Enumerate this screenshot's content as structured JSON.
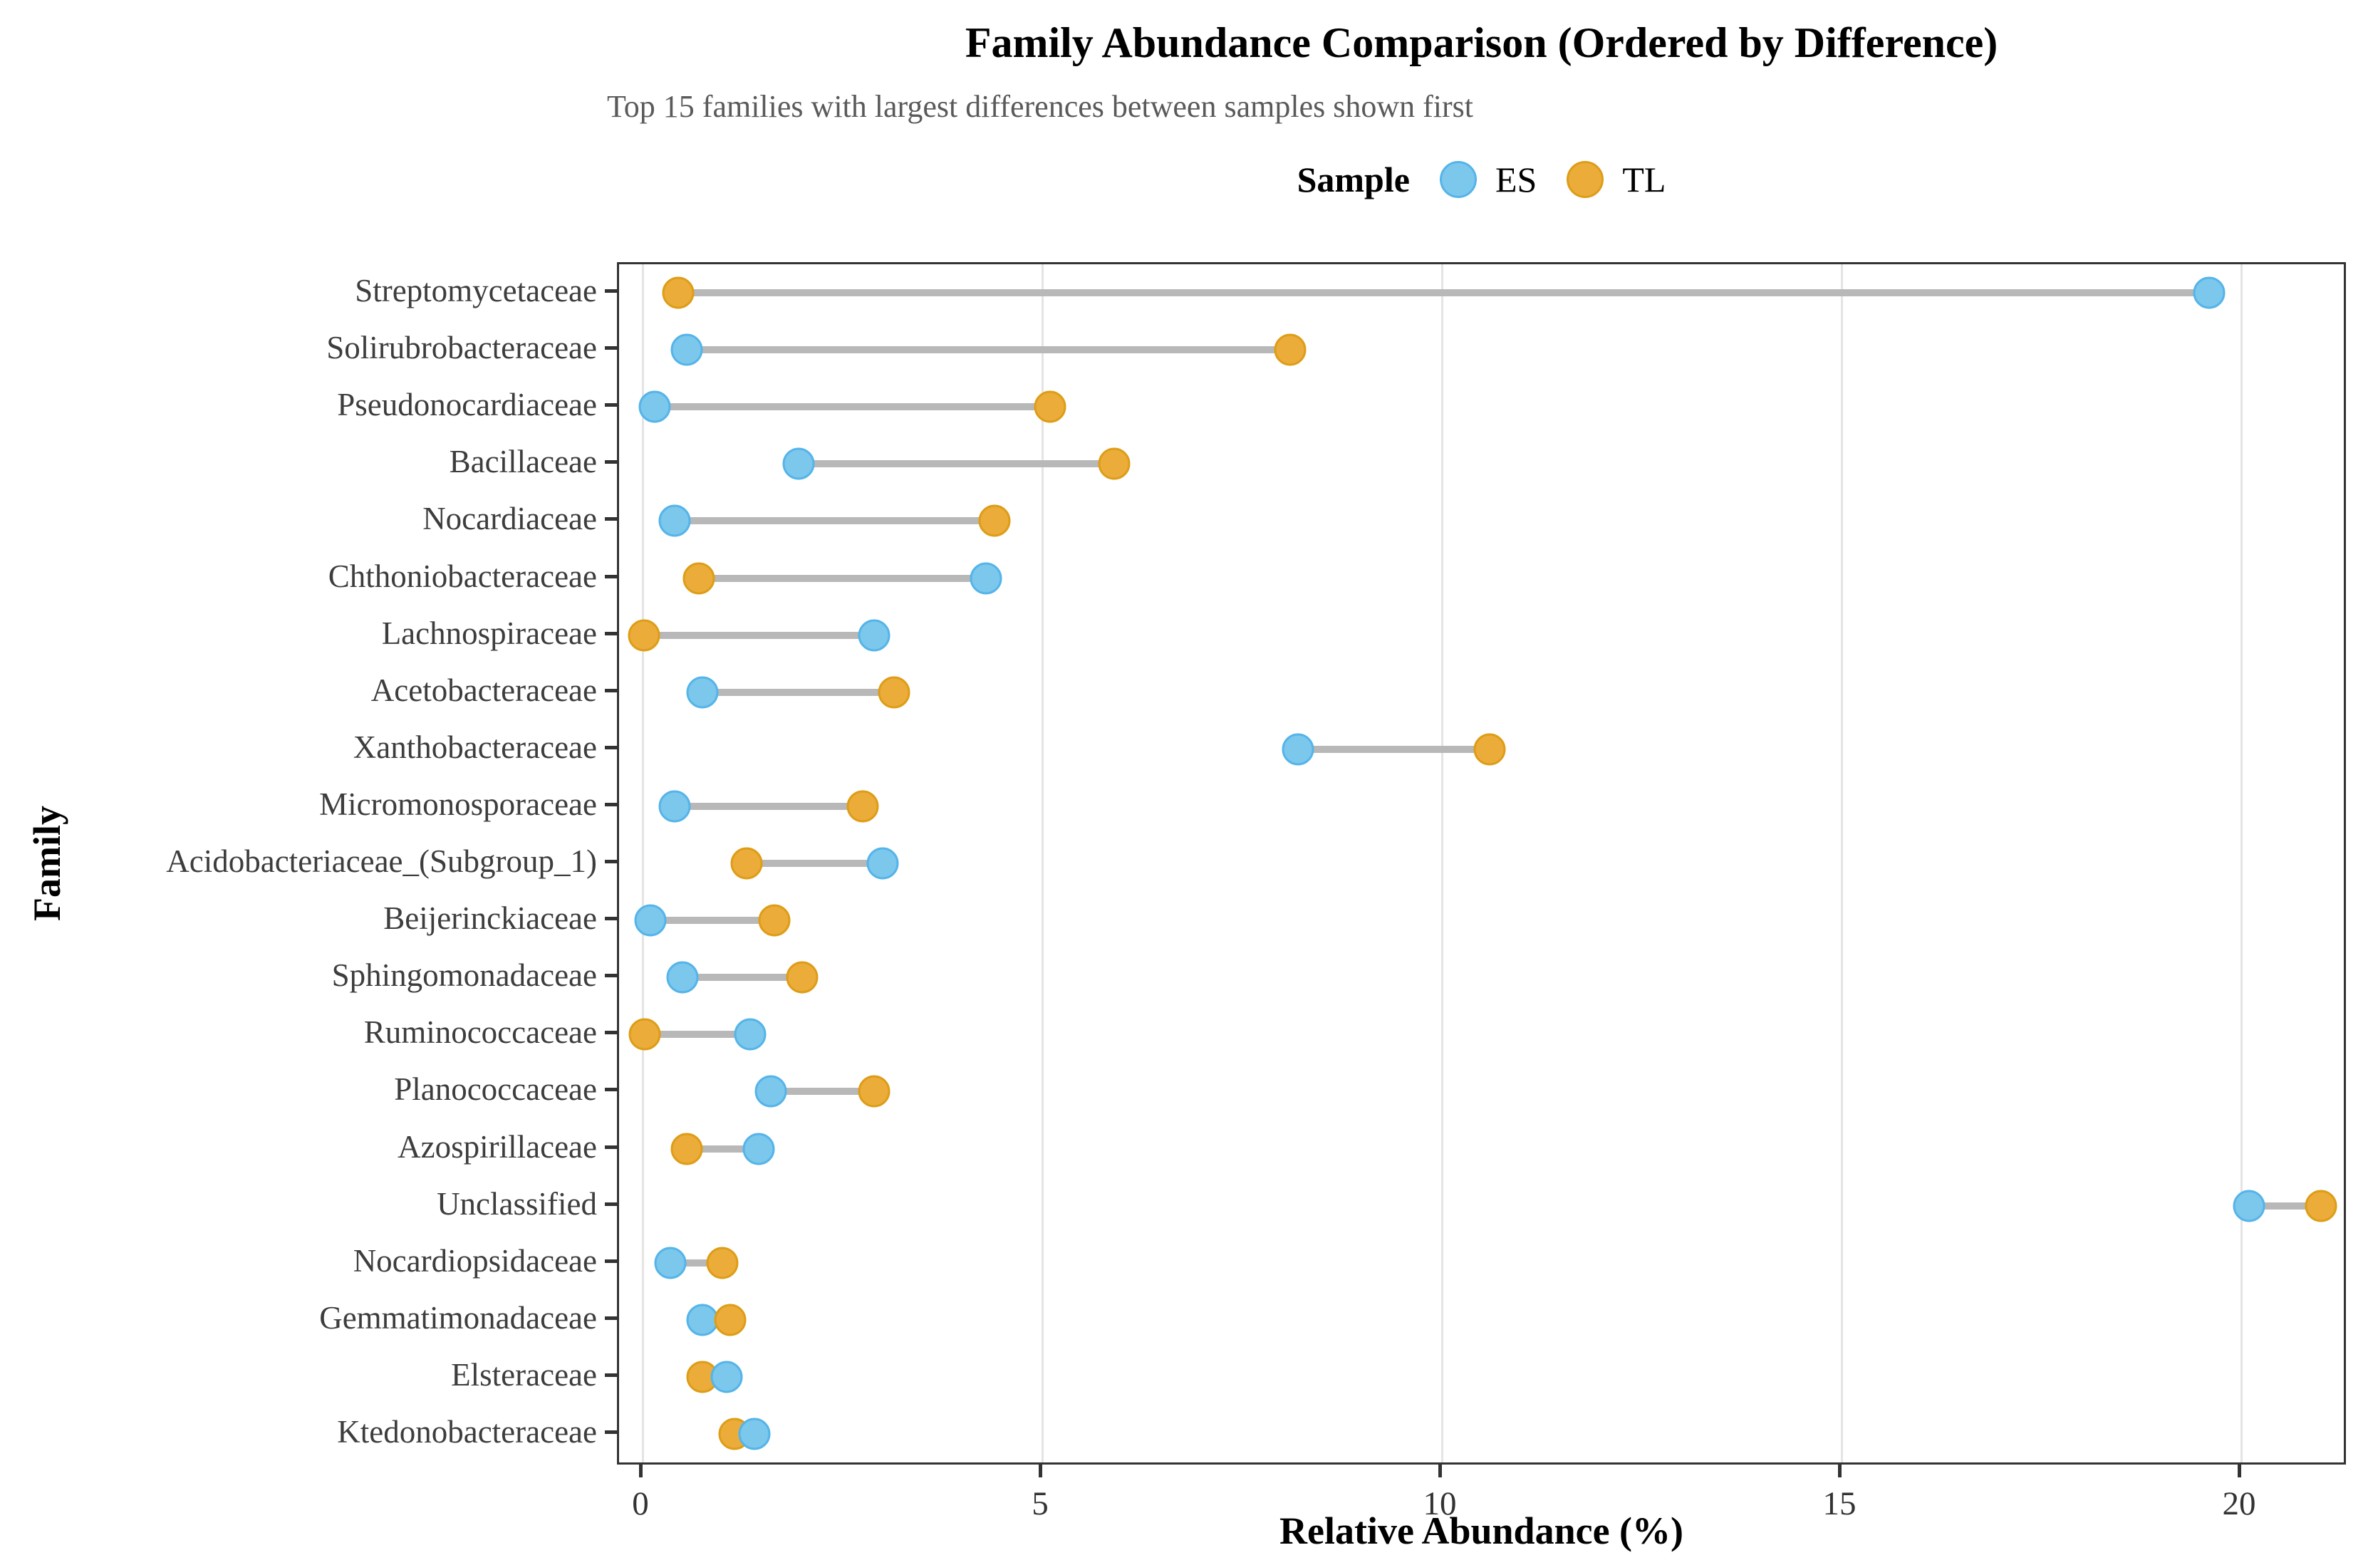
{
  "title": "Family Abundance Comparison (Ordered by Difference)",
  "subtitle": "Top 15 families with largest differences between samples shown first",
  "legend": {
    "title": "Sample",
    "items": [
      {
        "label": "ES",
        "fill": "#7CC7EC",
        "stroke": "#55B4E9"
      },
      {
        "label": "TL",
        "fill": "#EBAC3A",
        "stroke": "#DE9D17"
      }
    ]
  },
  "x_axis": {
    "label": "Relative Abundance (%)",
    "ticks": [
      0,
      5,
      10,
      15,
      20
    ]
  },
  "y_axis": {
    "label": "Family"
  },
  "colors": {
    "es_fill": "#7CC7EC",
    "es_stroke": "#55B4E9",
    "tl_fill": "#EBAC3A",
    "tl_stroke": "#DE9D17",
    "segment": "#B8B8B8",
    "gridline": "#E4E4E4",
    "panel_border": "#333333",
    "axis_text": "#333333",
    "y_label_text": "#3D3D3D",
    "subtitle_text": "#5A5A5A"
  },
  "chart_data": {
    "type": "dumbbell",
    "categories": [
      "Streptomycetaceae",
      "Solirubrobacteraceae",
      "Pseudonocardiaceae",
      "Bacillaceae",
      "Nocardiaceae",
      "Chthoniobacteraceae",
      "Lachnospiraceae",
      "Acetobacteraceae",
      "Xanthobacteraceae",
      "Micromonosporaceae",
      "Acidobacteriaceae_(Subgroup_1)",
      "Beijerinckiaceae",
      "Sphingomonadaceae",
      "Ruminococcaceae",
      "Planococcaceae",
      "Azospirillaceae",
      "Unclassified",
      "Nocardiopsidaceae",
      "Gemmatimonadaceae",
      "Elsteraceae",
      "Ktedonobacteraceae"
    ],
    "series": [
      {
        "name": "ES",
        "values": [
          19.6,
          0.55,
          0.15,
          1.95,
          0.4,
          4.3,
          2.9,
          0.75,
          8.2,
          0.4,
          3.0,
          0.1,
          0.5,
          1.35,
          1.6,
          1.45,
          20.1,
          0.35,
          0.75,
          1.05,
          1.4
        ]
      },
      {
        "name": "TL",
        "values": [
          0.45,
          8.1,
          5.1,
          5.9,
          4.4,
          0.7,
          0.02,
          3.15,
          10.6,
          2.75,
          1.3,
          1.65,
          2.0,
          0.03,
          2.9,
          0.55,
          21.0,
          1.0,
          1.1,
          0.75,
          1.15
        ]
      }
    ],
    "title": "Family Abundance Comparison (Ordered by Difference)",
    "subtitle": "Top 15 families with largest differences between samples shown first",
    "xlabel": "Relative Abundance (%)",
    "ylabel": "Family",
    "xlim": [
      -0.3,
      21.4
    ],
    "xticks": [
      0,
      5,
      10,
      15,
      20
    ],
    "grid": "vertical-only",
    "legend_position": "top-center"
  }
}
